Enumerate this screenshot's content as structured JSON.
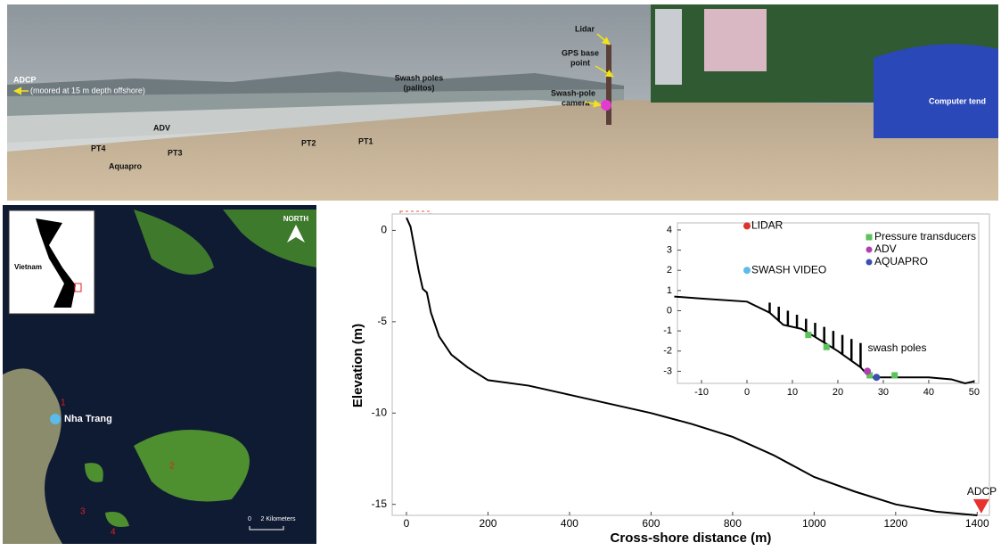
{
  "photo": {
    "adcp": "ADCP",
    "adcp_note": "(moored at 15 m depth offshore)",
    "swash_poles": [
      "Swash poles",
      "(palitos)"
    ],
    "lidar": "Lidar",
    "gps": [
      "GPS base",
      "point"
    ],
    "camera": [
      "Swash-pole",
      "camera"
    ],
    "computer": "Computer tend",
    "adv": "ADV",
    "pt4": "PT4",
    "pt3": "PT3",
    "pt2": "PT2",
    "pt1": "PT1",
    "aquapro": "Aquapro"
  },
  "map": {
    "country": "Vietnam",
    "north": "NORTH",
    "city": "Nha Trang",
    "sites": [
      "1",
      "2",
      "3",
      "4"
    ],
    "scale_zero": "0",
    "scale_label": "2 Kilometers"
  },
  "chart_data": [
    {
      "type": "line",
      "color": "#000000",
      "xlabel": "Cross-shore distance (m)",
      "ylabel": "Elevation (m)",
      "x": [
        0,
        10,
        20,
        30,
        40,
        50,
        60,
        80,
        110,
        150,
        200,
        300,
        400,
        500,
        600,
        700,
        800,
        900,
        1000,
        1100,
        1200,
        1300,
        1400
      ],
      "values": [
        0.7,
        0.2,
        -1.0,
        -2.2,
        -3.2,
        -3.4,
        -4.5,
        -5.8,
        -6.8,
        -7.5,
        -8.2,
        -8.5,
        -9.0,
        -9.5,
        -10.0,
        -10.6,
        -11.3,
        -12.3,
        -13.5,
        -14.3,
        -15.0,
        -15.4,
        -15.6
      ],
      "xlim": [
        -35,
        1430
      ],
      "ylim": [
        -15.6,
        0.9
      ],
      "xticks": [
        0,
        200,
        400,
        600,
        800,
        1000,
        1200,
        1400
      ],
      "yticks": [
        0,
        -5,
        -10,
        -15
      ],
      "marker": {
        "label": "ADCP",
        "x": 1410,
        "value": -15.3,
        "color": "#e8312f"
      }
    },
    {
      "type": "line",
      "color": "#000000",
      "x": [
        -16,
        -10,
        0,
        5,
        8,
        12,
        15,
        20,
        25,
        27,
        30,
        35,
        40,
        45,
        48,
        50
      ],
      "values": [
        0.7,
        0.6,
        0.45,
        -0.1,
        -0.7,
        -0.9,
        -1.3,
        -2.0,
        -2.8,
        -3.3,
        -3.3,
        -3.3,
        -3.3,
        -3.4,
        -3.6,
        -3.5
      ],
      "xlim": [
        -15.3,
        51
      ],
      "ylim": [
        -3.6,
        4.35
      ],
      "xticks": [
        -10,
        0,
        10,
        20,
        30,
        40,
        50
      ],
      "yticks": [
        -3,
        -2,
        -1,
        0,
        1,
        2,
        3,
        4
      ],
      "series": [
        {
          "name": "LIDAR",
          "color": "#e0312c",
          "marker": "circle",
          "inline_label": true,
          "x": [
            0
          ],
          "values": [
            4.2
          ]
        },
        {
          "name": "SWASH VIDEO",
          "color": "#5bbbea",
          "marker": "circle",
          "inline_label": true,
          "x": [
            0
          ],
          "values": [
            2.0
          ]
        },
        {
          "name": "Pressure transducers",
          "color": "#5cc35a",
          "marker": "square",
          "inline_label": false,
          "x": [
            13.5,
            17.5,
            27,
            32.5
          ],
          "values": [
            -1.2,
            -1.8,
            -3.2,
            -3.2
          ]
        },
        {
          "name": "ADV",
          "color": "#b23fb0",
          "marker": "circle",
          "inline_label": false,
          "x": [
            26.5
          ],
          "values": [
            -3.0
          ]
        },
        {
          "name": "AQUAPRO",
          "color": "#3a4fb0",
          "marker": "circle",
          "inline_label": false,
          "x": [
            28.5
          ],
          "values": [
            -3.3
          ]
        }
      ],
      "poles": {
        "label": "swash poles",
        "x": [
          5,
          7,
          9,
          11,
          13,
          15,
          17,
          19,
          21,
          23,
          25
        ],
        "tops": [
          0.4,
          0.2,
          0,
          -0.2,
          -0.4,
          -0.6,
          -0.8,
          -1.0,
          -1.2,
          -1.4,
          -1.6
        ]
      }
    }
  ]
}
